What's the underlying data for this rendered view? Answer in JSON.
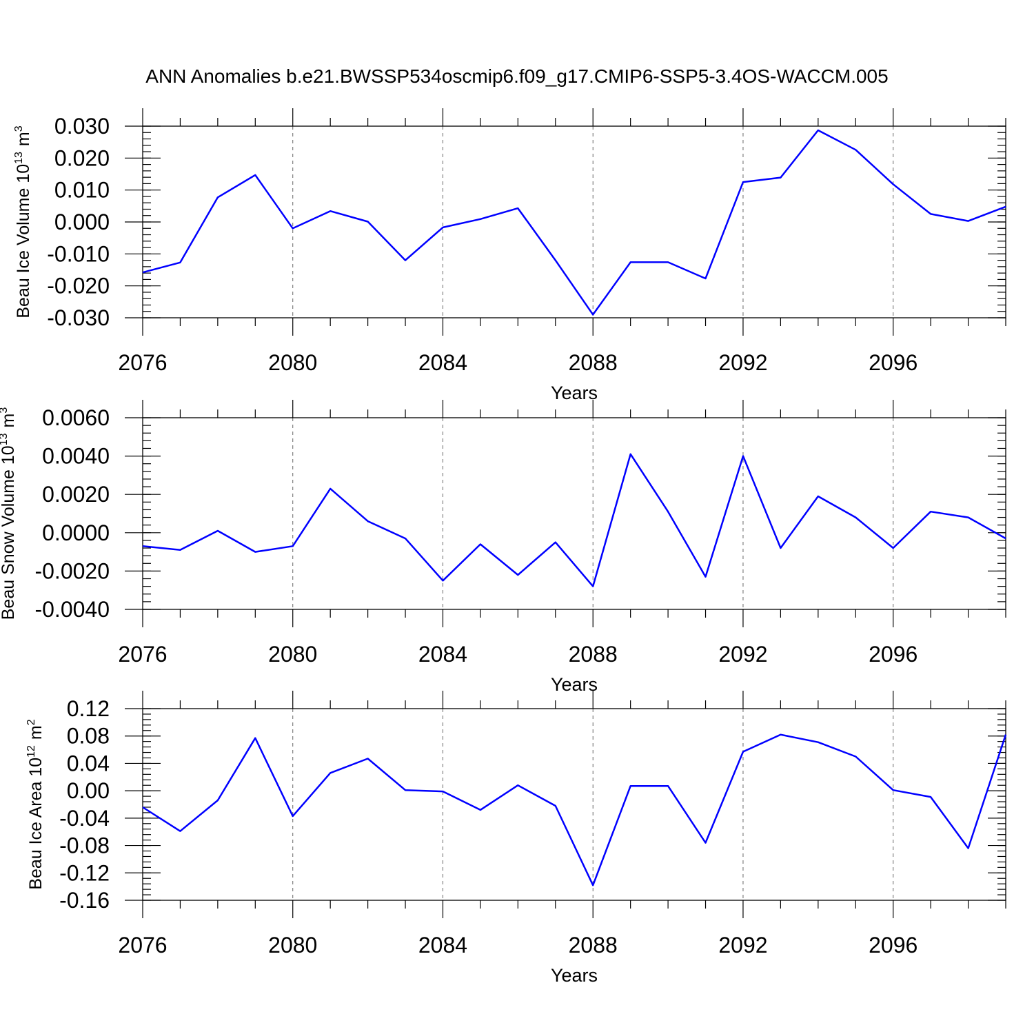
{
  "title": "ANN Anomalies b.e21.BWSSP534oscmip6.f09_g17.CMIP6-SSP5-3.4OS-WACCM.005",
  "chart_data": [
    {
      "type": "line",
      "ylabel": "Beau Ice Volume",
      "ylabel_exp": "10",
      "ylabel_exp_sup": "13",
      "ylabel_unit": "m",
      "ylabel_unit_sup": "3",
      "xlabel": "Years",
      "xlim": [
        2076,
        2099
      ],
      "ylim": [
        -0.03,
        0.03
      ],
      "yticks": [
        -0.03,
        -0.02,
        -0.01,
        0.0,
        0.01,
        0.02,
        0.03
      ],
      "ytick_labels": [
        "-0.030",
        "-0.020",
        "-0.010",
        "0.000",
        "0.010",
        "0.020",
        "0.030"
      ],
      "yminor": 0.002,
      "xticks": [
        2076,
        2080,
        2084,
        2088,
        2092,
        2096
      ],
      "xtick_labels": [
        "2076",
        "2080",
        "2084",
        "2088",
        "2092",
        "2096"
      ],
      "grid_x": [
        2080,
        2084,
        2088,
        2092,
        2096
      ],
      "color": "#0000ff",
      "x": [
        2076,
        2077,
        2078,
        2079,
        2080,
        2081,
        2082,
        2083,
        2084,
        2085,
        2086,
        2087,
        2088,
        2089,
        2090,
        2091,
        2092,
        2093,
        2094,
        2095,
        2096,
        2097,
        2098,
        2099
      ],
      "values": [
        -0.0158,
        -0.0127,
        0.0077,
        0.0147,
        -0.002,
        0.0034,
        0.0001,
        -0.012,
        -0.0017,
        0.0009,
        0.0043,
        -0.012,
        -0.029,
        -0.0126,
        -0.0126,
        -0.0177,
        0.0125,
        0.0139,
        0.0287,
        0.0226,
        0.0118,
        0.0025,
        0.0003,
        0.0048
      ]
    },
    {
      "type": "line",
      "ylabel": "Beau Snow Volume",
      "ylabel_exp": "10",
      "ylabel_exp_sup": "13",
      "ylabel_unit": "m",
      "ylabel_unit_sup": "3",
      "xlabel": "Years",
      "xlim": [
        2076,
        2099
      ],
      "ylim": [
        -0.004,
        0.006
      ],
      "yticks": [
        -0.004,
        -0.002,
        0.0,
        0.002,
        0.004,
        0.006
      ],
      "ytick_labels": [
        "-0.0040",
        "-0.0020",
        "0.0000",
        "0.0020",
        "0.0040",
        "0.0060"
      ],
      "yminor": 0.0004,
      "xticks": [
        2076,
        2080,
        2084,
        2088,
        2092,
        2096
      ],
      "xtick_labels": [
        "2076",
        "2080",
        "2084",
        "2088",
        "2092",
        "2096"
      ],
      "grid_x": [
        2080,
        2084,
        2088,
        2092,
        2096
      ],
      "color": "#0000ff",
      "x": [
        2076,
        2077,
        2078,
        2079,
        2080,
        2081,
        2082,
        2083,
        2084,
        2085,
        2086,
        2087,
        2088,
        2089,
        2090,
        2091,
        2092,
        2093,
        2094,
        2095,
        2096,
        2097,
        2098,
        2099
      ],
      "values": [
        -0.0007,
        -0.0009,
        0.0001,
        -0.001,
        -0.0007,
        0.0023,
        0.0006,
        -0.0003,
        -0.0025,
        -0.0006,
        -0.0022,
        -0.0005,
        -0.0028,
        0.0041,
        0.0011,
        -0.0023,
        0.004,
        -0.0008,
        0.0019,
        0.0008,
        -0.0008,
        0.0011,
        0.0008,
        -0.0003
      ]
    },
    {
      "type": "line",
      "ylabel": "Beau Ice Area",
      "ylabel_exp": "10",
      "ylabel_exp_sup": "12",
      "ylabel_unit": "m",
      "ylabel_unit_sup": "2",
      "xlabel": "Years",
      "xlim": [
        2076,
        2099
      ],
      "ylim": [
        -0.16,
        0.12
      ],
      "yticks": [
        -0.16,
        -0.12,
        -0.08,
        -0.04,
        0.0,
        0.04,
        0.08,
        0.12
      ],
      "ytick_labels": [
        "-0.16",
        "-0.12",
        "-0.08",
        "-0.04",
        "0.00",
        "0.04",
        "0.08",
        "0.12"
      ],
      "yminor": 0.008,
      "xticks": [
        2076,
        2080,
        2084,
        2088,
        2092,
        2096
      ],
      "xtick_labels": [
        "2076",
        "2080",
        "2084",
        "2088",
        "2092",
        "2096"
      ],
      "grid_x": [
        2080,
        2084,
        2088,
        2092,
        2096
      ],
      "color": "#0000ff",
      "x": [
        2076,
        2077,
        2078,
        2079,
        2080,
        2081,
        2082,
        2083,
        2084,
        2085,
        2086,
        2087,
        2088,
        2089,
        2090,
        2091,
        2092,
        2093,
        2094,
        2095,
        2096,
        2097,
        2098,
        2099
      ],
      "values": [
        -0.024,
        -0.059,
        -0.014,
        0.077,
        -0.037,
        0.026,
        0.047,
        0.001,
        -0.001,
        -0.028,
        0.008,
        -0.022,
        -0.138,
        0.007,
        0.007,
        -0.076,
        0.057,
        0.082,
        0.071,
        0.05,
        0.001,
        -0.009,
        -0.084,
        0.082
      ]
    }
  ]
}
